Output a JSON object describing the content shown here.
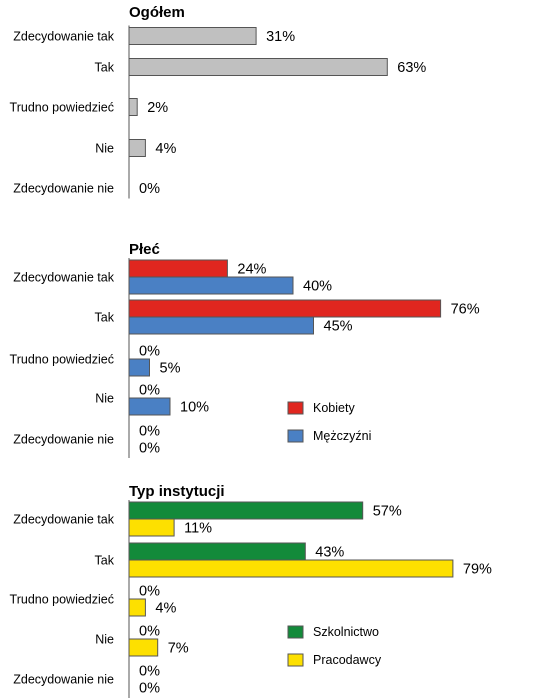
{
  "colors": {
    "overall": "#c0c0c0",
    "kobiety": "#e0261f",
    "mezczyzni": "#4a80c4",
    "szkolnictwo": "#138a3a",
    "pracodawcy": "#fde000",
    "bar_stroke": "#555555"
  },
  "chart_data": [
    {
      "type": "bar",
      "orientation": "horizontal",
      "title": "Ogółem",
      "categories": [
        "Zdecydowanie tak",
        "Tak",
        "Trudno powiedzieć",
        "Nie",
        "Zdecydowanie nie"
      ],
      "series": [
        {
          "color": "#c0c0c0",
          "values": [
            31,
            63,
            2,
            4,
            0
          ]
        }
      ],
      "value_unit": "%",
      "xlim": [
        0,
        100
      ],
      "grid": false
    },
    {
      "type": "bar",
      "orientation": "horizontal",
      "title": "Płeć",
      "categories": [
        "Zdecydowanie tak",
        "Tak",
        "Trudno powiedzieć",
        "Nie",
        "Zdecydowanie nie"
      ],
      "series": [
        {
          "name": "Kobiety",
          "color": "#e0261f",
          "values": [
            24,
            76,
            0,
            0,
            0
          ]
        },
        {
          "name": "Mężczyźni",
          "color": "#4a80c4",
          "values": [
            40,
            45,
            5,
            10,
            0
          ]
        }
      ],
      "value_unit": "%",
      "xlim": [
        0,
        100
      ],
      "legend": "right",
      "grid": false
    },
    {
      "type": "bar",
      "orientation": "horizontal",
      "title": "Typ instytucji",
      "categories": [
        "Zdecydowanie tak",
        "Tak",
        "Trudno powiedzieć",
        "Nie",
        "Zdecydowanie nie"
      ],
      "series": [
        {
          "name": "Szkolnictwo",
          "color": "#138a3a",
          "values": [
            57,
            43,
            0,
            0,
            0
          ]
        },
        {
          "name": "Pracodawcy",
          "color": "#fde000",
          "values": [
            11,
            79,
            4,
            7,
            0
          ]
        }
      ],
      "value_unit": "%",
      "xlim": [
        0,
        100
      ],
      "legend": "right",
      "grid": false
    }
  ]
}
